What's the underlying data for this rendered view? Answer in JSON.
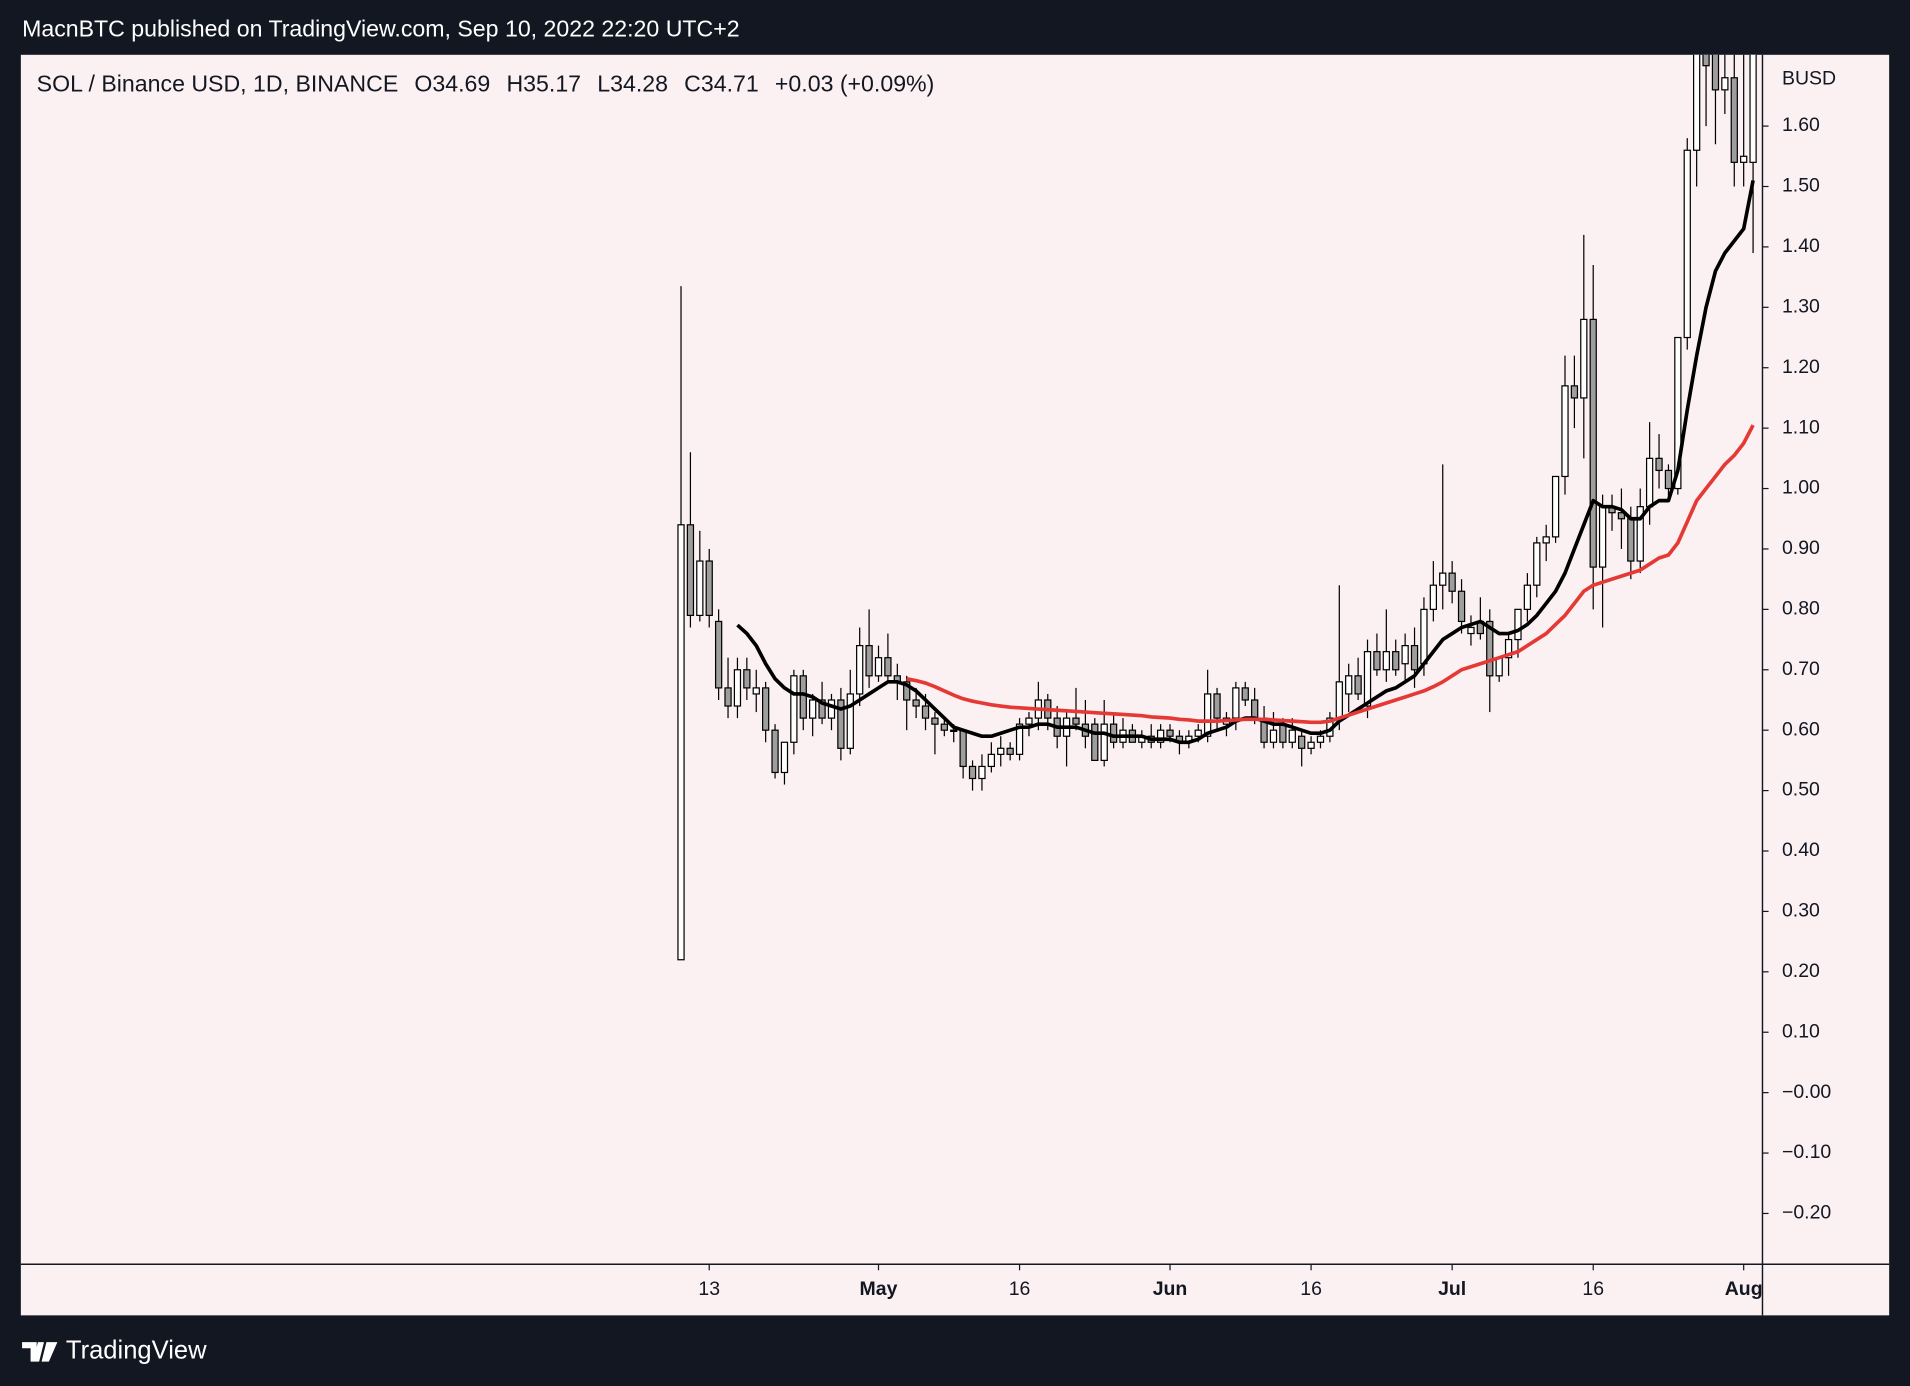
{
  "header": {
    "text": "MacnBTC published on TradingView.com, Sep 10, 2022 22:20 UTC+2"
  },
  "footer": {
    "brand": "TradingView"
  },
  "chart_data": {
    "type": "candlestick",
    "legend": {
      "symbol": "SOL / Binance USD, 1D, BINANCE",
      "open": "O34.69",
      "high": "H35.17",
      "low": "L34.28",
      "close": "C34.71",
      "change": "+0.03 (+0.09%)"
    },
    "currency": "BUSD",
    "xlim": [
      -70.2,
      115
    ],
    "xticks": [
      {
        "value": 3,
        "label": "13"
      },
      {
        "value": 21,
        "label": "May"
      },
      {
        "value": 36,
        "label": "16"
      },
      {
        "value": 52,
        "label": "Jun"
      },
      {
        "value": 67,
        "label": "16"
      },
      {
        "value": 82,
        "label": "Jul"
      },
      {
        "value": 97,
        "label": "16"
      },
      {
        "value": 113,
        "label": "Aug"
      }
    ],
    "ylim": [
      -0.284,
      1.718
    ],
    "yticks": [
      {
        "value": 1.6,
        "label": "1.60"
      },
      {
        "value": 1.5,
        "label": "1.50"
      },
      {
        "value": 1.4,
        "label": "1.40"
      },
      {
        "value": 1.3,
        "label": "1.30"
      },
      {
        "value": 1.2,
        "label": "1.20"
      },
      {
        "value": 1.1,
        "label": "1.10"
      },
      {
        "value": 1.0,
        "label": "1.00"
      },
      {
        "value": 0.9,
        "label": "0.90"
      },
      {
        "value": 0.8,
        "label": "0.80"
      },
      {
        "value": 0.7,
        "label": "0.70"
      },
      {
        "value": 0.6,
        "label": "0.60"
      },
      {
        "value": 0.5,
        "label": "0.50"
      },
      {
        "value": 0.4,
        "label": "0.40"
      },
      {
        "value": 0.3,
        "label": "0.30"
      },
      {
        "value": 0.2,
        "label": "0.20"
      },
      {
        "value": 0.1,
        "label": "0.10"
      },
      {
        "value": 0,
        "label": "−0.00"
      },
      {
        "value": -0.1,
        "label": "−0.10"
      },
      {
        "value": -0.2,
        "label": "−0.20"
      }
    ],
    "up_color": "#ffffff",
    "down_color": "#9e9e9e",
    "wick_color": "#000000",
    "ohlc": [
      [
        0.22,
        1.335,
        0.22,
        0.94
      ],
      [
        0.94,
        1.06,
        0.77,
        0.79
      ],
      [
        0.79,
        0.93,
        0.78,
        0.88
      ],
      [
        0.88,
        0.9,
        0.77,
        0.79
      ],
      [
        0.78,
        0.8,
        0.65,
        0.67
      ],
      [
        0.67,
        0.72,
        0.62,
        0.64
      ],
      [
        0.64,
        0.72,
        0.62,
        0.7
      ],
      [
        0.7,
        0.72,
        0.65,
        0.67
      ],
      [
        0.66,
        0.7,
        0.63,
        0.67
      ],
      [
        0.67,
        0.68,
        0.58,
        0.6
      ],
      [
        0.6,
        0.61,
        0.52,
        0.53
      ],
      [
        0.53,
        0.58,
        0.51,
        0.58
      ],
      [
        0.58,
        0.7,
        0.56,
        0.69
      ],
      [
        0.69,
        0.7,
        0.6,
        0.62
      ],
      [
        0.62,
        0.66,
        0.59,
        0.65
      ],
      [
        0.65,
        0.68,
        0.61,
        0.62
      ],
      [
        0.62,
        0.66,
        0.6,
        0.65
      ],
      [
        0.65,
        0.67,
        0.55,
        0.57
      ],
      [
        0.57,
        0.7,
        0.56,
        0.66
      ],
      [
        0.66,
        0.77,
        0.64,
        0.74
      ],
      [
        0.74,
        0.8,
        0.67,
        0.69
      ],
      [
        0.69,
        0.74,
        0.68,
        0.72
      ],
      [
        0.72,
        0.76,
        0.68,
        0.69
      ],
      [
        0.69,
        0.71,
        0.65,
        0.68
      ],
      [
        0.68,
        0.69,
        0.6,
        0.65
      ],
      [
        0.65,
        0.67,
        0.62,
        0.64
      ],
      [
        0.64,
        0.66,
        0.6,
        0.62
      ],
      [
        0.62,
        0.63,
        0.56,
        0.61
      ],
      [
        0.61,
        0.62,
        0.59,
        0.6
      ],
      [
        0.6,
        0.61,
        0.58,
        0.6
      ],
      [
        0.6,
        0.6,
        0.52,
        0.54
      ],
      [
        0.54,
        0.55,
        0.5,
        0.52
      ],
      [
        0.52,
        0.56,
        0.5,
        0.54
      ],
      [
        0.54,
        0.58,
        0.53,
        0.56
      ],
      [
        0.56,
        0.59,
        0.54,
        0.57
      ],
      [
        0.57,
        0.58,
        0.55,
        0.56
      ],
      [
        0.56,
        0.62,
        0.55,
        0.61
      ],
      [
        0.61,
        0.63,
        0.59,
        0.62
      ],
      [
        0.62,
        0.68,
        0.6,
        0.65
      ],
      [
        0.65,
        0.66,
        0.6,
        0.62
      ],
      [
        0.62,
        0.64,
        0.57,
        0.59
      ],
      [
        0.59,
        0.63,
        0.54,
        0.62
      ],
      [
        0.62,
        0.67,
        0.6,
        0.61
      ],
      [
        0.61,
        0.65,
        0.57,
        0.59
      ],
      [
        0.61,
        0.62,
        0.55,
        0.55
      ],
      [
        0.55,
        0.65,
        0.54,
        0.61
      ],
      [
        0.61,
        0.63,
        0.57,
        0.58
      ],
      [
        0.58,
        0.62,
        0.57,
        0.6
      ],
      [
        0.6,
        0.61,
        0.58,
        0.58
      ],
      [
        0.58,
        0.6,
        0.57,
        0.59
      ],
      [
        0.59,
        0.61,
        0.57,
        0.58
      ],
      [
        0.58,
        0.61,
        0.57,
        0.6
      ],
      [
        0.6,
        0.61,
        0.58,
        0.59
      ],
      [
        0.59,
        0.6,
        0.56,
        0.58
      ],
      [
        0.58,
        0.6,
        0.57,
        0.59
      ],
      [
        0.59,
        0.61,
        0.58,
        0.6
      ],
      [
        0.59,
        0.7,
        0.58,
        0.66
      ],
      [
        0.66,
        0.67,
        0.6,
        0.62
      ],
      [
        0.61,
        0.63,
        0.59,
        0.62
      ],
      [
        0.62,
        0.68,
        0.6,
        0.67
      ],
      [
        0.67,
        0.68,
        0.64,
        0.65
      ],
      [
        0.65,
        0.67,
        0.61,
        0.62
      ],
      [
        0.62,
        0.64,
        0.57,
        0.58
      ],
      [
        0.58,
        0.63,
        0.57,
        0.6
      ],
      [
        0.61,
        0.62,
        0.57,
        0.58
      ],
      [
        0.58,
        0.62,
        0.57,
        0.6
      ],
      [
        0.59,
        0.6,
        0.54,
        0.57
      ],
      [
        0.57,
        0.59,
        0.56,
        0.58
      ],
      [
        0.58,
        0.6,
        0.57,
        0.59
      ],
      [
        0.59,
        0.63,
        0.58,
        0.62
      ],
      [
        0.62,
        0.84,
        0.6,
        0.68
      ],
      [
        0.66,
        0.71,
        0.63,
        0.69
      ],
      [
        0.69,
        0.72,
        0.65,
        0.66
      ],
      [
        0.64,
        0.75,
        0.62,
        0.73
      ],
      [
        0.73,
        0.76,
        0.69,
        0.7
      ],
      [
        0.7,
        0.8,
        0.68,
        0.73
      ],
      [
        0.73,
        0.75,
        0.69,
        0.7
      ],
      [
        0.71,
        0.76,
        0.68,
        0.74
      ],
      [
        0.74,
        0.77,
        0.67,
        0.7
      ],
      [
        0.71,
        0.82,
        0.69,
        0.8
      ],
      [
        0.8,
        0.88,
        0.78,
        0.84
      ],
      [
        0.84,
        1.04,
        0.8,
        0.86
      ],
      [
        0.86,
        0.88,
        0.81,
        0.83
      ],
      [
        0.83,
        0.85,
        0.76,
        0.78
      ],
      [
        0.76,
        0.79,
        0.74,
        0.77
      ],
      [
        0.78,
        0.82,
        0.75,
        0.76
      ],
      [
        0.78,
        0.8,
        0.63,
        0.69
      ],
      [
        0.69,
        0.72,
        0.68,
        0.72
      ],
      [
        0.72,
        0.76,
        0.69,
        0.75
      ],
      [
        0.75,
        0.8,
        0.72,
        0.8
      ],
      [
        0.8,
        0.86,
        0.78,
        0.84
      ],
      [
        0.84,
        0.92,
        0.82,
        0.91
      ],
      [
        0.91,
        0.94,
        0.88,
        0.92
      ],
      [
        0.92,
        1.02,
        0.91,
        1.02
      ],
      [
        1.02,
        1.22,
        0.99,
        1.17
      ],
      [
        1.17,
        1.22,
        1.1,
        1.15
      ],
      [
        1.15,
        1.42,
        1.05,
        1.28
      ],
      [
        1.28,
        1.37,
        0.8,
        0.87
      ],
      [
        0.87,
        0.99,
        0.77,
        0.97
      ],
      [
        0.97,
        0.99,
        0.93,
        0.96
      ],
      [
        0.96,
        1.0,
        0.9,
        0.95
      ],
      [
        0.95,
        0.97,
        0.85,
        0.88
      ],
      [
        0.88,
        1.0,
        0.86,
        0.97
      ],
      [
        0.97,
        1.11,
        0.94,
        1.05
      ],
      [
        1.05,
        1.09,
        1.0,
        1.03
      ],
      [
        1.03,
        1.04,
        0.98,
        1.0
      ],
      [
        1.0,
        1.25,
        0.99,
        1.25
      ],
      [
        1.25,
        1.58,
        1.23,
        1.56
      ],
      [
        1.56,
        1.72,
        1.5,
        1.72
      ],
      [
        1.72,
        1.72,
        1.6,
        1.7
      ],
      [
        1.72,
        1.72,
        1.57,
        1.66
      ],
      [
        1.66,
        1.72,
        1.62,
        1.68
      ],
      [
        1.68,
        1.72,
        1.5,
        1.54
      ],
      [
        1.54,
        1.72,
        1.5,
        1.55
      ],
      [
        1.54,
        1.72,
        1.39,
        1.72
      ]
    ],
    "series": [
      {
        "color": "#000000",
        "values": [
          null,
          null,
          null,
          null,
          null,
          null,
          0.774,
          0.76,
          0.74,
          0.71,
          0.685,
          0.67,
          0.66,
          0.66,
          0.655,
          0.645,
          0.64,
          0.635,
          0.64,
          0.65,
          0.66,
          0.67,
          0.68,
          0.68,
          0.675,
          0.665,
          0.65,
          0.635,
          0.62,
          0.605,
          0.6,
          0.595,
          0.59,
          0.59,
          0.595,
          0.6,
          0.605,
          0.605,
          0.61,
          0.61,
          0.605,
          0.605,
          0.605,
          0.6,
          0.595,
          0.595,
          0.59,
          0.59,
          0.59,
          0.59,
          0.585,
          0.585,
          0.585,
          0.58,
          0.58,
          0.585,
          0.595,
          0.6,
          0.605,
          0.615,
          0.62,
          0.62,
          0.615,
          0.61,
          0.61,
          0.605,
          0.6,
          0.595,
          0.595,
          0.6,
          0.615,
          0.625,
          0.635,
          0.645,
          0.655,
          0.665,
          0.67,
          0.68,
          0.69,
          0.71,
          0.73,
          0.75,
          0.76,
          0.77,
          0.775,
          0.78,
          0.77,
          0.76,
          0.76,
          0.765,
          0.775,
          0.79,
          0.81,
          0.83,
          0.86,
          0.9,
          0.94,
          0.98,
          0.97,
          0.97,
          0.965,
          0.95,
          0.95,
          0.97,
          0.98,
          0.98,
          1.03,
          1.13,
          1.22,
          1.3,
          1.36,
          1.39,
          1.41,
          1.43,
          1.51
        ]
      },
      {
        "color": "#e53935",
        "values": [
          null,
          null,
          null,
          null,
          null,
          null,
          null,
          null,
          null,
          null,
          null,
          null,
          null,
          null,
          null,
          null,
          null,
          null,
          null,
          null,
          null,
          null,
          null,
          null,
          0.685,
          0.682,
          0.678,
          0.672,
          0.665,
          0.658,
          0.652,
          0.648,
          0.645,
          0.642,
          0.64,
          0.638,
          0.637,
          0.636,
          0.635,
          0.634,
          0.633,
          0.632,
          0.631,
          0.63,
          0.629,
          0.628,
          0.627,
          0.626,
          0.625,
          0.624,
          0.622,
          0.621,
          0.62,
          0.618,
          0.617,
          0.615,
          0.615,
          0.615,
          0.616,
          0.617,
          0.618,
          0.618,
          0.618,
          0.617,
          0.616,
          0.615,
          0.614,
          0.613,
          0.613,
          0.615,
          0.62,
          0.625,
          0.63,
          0.635,
          0.64,
          0.645,
          0.65,
          0.655,
          0.66,
          0.665,
          0.672,
          0.68,
          0.69,
          0.7,
          0.705,
          0.71,
          0.715,
          0.72,
          0.725,
          0.73,
          0.74,
          0.75,
          0.76,
          0.775,
          0.79,
          0.81,
          0.83,
          0.84,
          0.845,
          0.85,
          0.855,
          0.86,
          0.865,
          0.875,
          0.885,
          0.89,
          0.91,
          0.945,
          0.98,
          1.0,
          1.02,
          1.04,
          1.055,
          1.075,
          1.105
        ]
      }
    ]
  }
}
